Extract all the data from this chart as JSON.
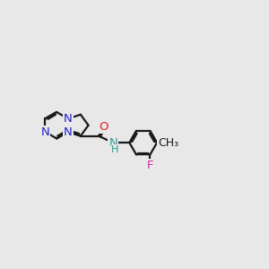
{
  "bg_color": "#e8e8e8",
  "bond_color": "#1a1a1a",
  "N_color": "#2222cc",
  "O_color": "#dd2222",
  "F_color": "#cc3399",
  "NH_color": "#339999",
  "line_width": 1.6,
  "font_size": 9.5,
  "figsize": [
    3.0,
    3.0
  ],
  "dpi": 100,
  "xlim": [
    0,
    10
  ],
  "ylim": [
    0,
    10
  ]
}
